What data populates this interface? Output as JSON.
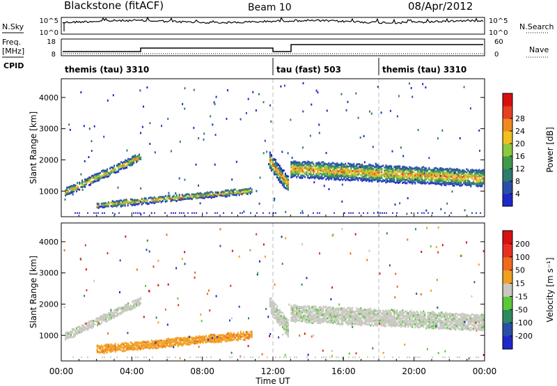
{
  "header": {
    "station": "Blackstone (fitACF)",
    "beam": "Beam 10",
    "date": "08/Apr/2012"
  },
  "left_labels": {
    "nsky": "N.Sky",
    "freq_line1": "Freq.",
    "freq_line2": "[MHz]",
    "cpid": "CPID"
  },
  "right_labels": {
    "nsearch": "N.Search",
    "nave": "Nave"
  },
  "status_axes": {
    "noise_left_ticks": [
      "10^5",
      "10^0"
    ],
    "noise_right_ticks": [
      "10^5",
      "10^0"
    ],
    "freq_left_ticks": [
      "18",
      "8"
    ],
    "freq_right_ticks": [
      "60",
      "0"
    ]
  },
  "cpid_segments": [
    {
      "label": "themis (tau) 3310",
      "start_h": 0,
      "end_h": 12
    },
    {
      "label": "tau (fast) 503",
      "start_h": 12,
      "end_h": 18
    },
    {
      "label": "themis (tau) 3310",
      "start_h": 18,
      "end_h": 24
    }
  ],
  "chart_data": [
    {
      "type": "heatmap",
      "name": "Power",
      "xlabel": "Time UT",
      "ylabel": "Slant Range [km]",
      "xlim": [
        0,
        24
      ],
      "ylim": [
        180,
        4600
      ],
      "yticks": [
        "1000",
        "2000",
        "3000",
        "4000"
      ],
      "xticks": [
        "00:00",
        "04:00",
        "08:00",
        "12:00",
        "16:00",
        "20:00",
        "00:00"
      ],
      "colorbar": {
        "label": "Power [dB]",
        "ticks": [
          "4",
          "8",
          "12",
          "16",
          "20",
          "24",
          "28"
        ],
        "colors": [
          "#1f28c8",
          "#2850a8",
          "#2e7a6e",
          "#3f9a4a",
          "#8cc840",
          "#f0c020",
          "#f08a20",
          "#e84020",
          "#d81010"
        ]
      },
      "echo_bands": [
        {
          "start_h": 0.2,
          "end_h": 4.5,
          "range_start_km": 1000,
          "range_end_km": 2150,
          "width_km": 230
        },
        {
          "start_h": 2.0,
          "end_h": 10.8,
          "range_start_km": 580,
          "range_end_km": 1050,
          "width_km": 160
        },
        {
          "start_h": 11.8,
          "end_h": 12.9,
          "range_start_km": 2000,
          "range_end_km": 1200,
          "width_km": 500
        },
        {
          "start_h": 13.0,
          "end_h": 23.9,
          "range_start_km": 1750,
          "range_end_km": 1450,
          "width_km": 520
        }
      ]
    },
    {
      "type": "heatmap",
      "name": "Velocity",
      "xlabel": "Time UT",
      "ylabel": "Slant Range [km]",
      "xlim": [
        0,
        24
      ],
      "ylim": [
        180,
        4600
      ],
      "yticks": [
        "1000",
        "2000",
        "3000",
        "4000"
      ],
      "xticks": [
        "00:00",
        "04:00",
        "08:00",
        "12:00",
        "16:00",
        "20:00",
        "00:00"
      ],
      "colorbar": {
        "label": "Velocity [m s⁻¹]",
        "ticks": [
          "200",
          "100",
          "50",
          "15",
          "-15",
          "-50",
          "-100",
          "-200"
        ],
        "colors": [
          "#1f28c8",
          "#2850a8",
          "#2e8a5e",
          "#5ac83a",
          "#c8c8c0",
          "#f0a020",
          "#f06a20",
          "#e83020",
          "#d81010"
        ]
      },
      "echo_bands": [
        {
          "start_h": 0.2,
          "end_h": 4.5,
          "range_start_km": 1000,
          "range_end_km": 2150,
          "width_km": 230
        },
        {
          "start_h": 2.0,
          "end_h": 10.8,
          "range_start_km": 580,
          "range_end_km": 1050,
          "width_km": 220
        },
        {
          "start_h": 11.8,
          "end_h": 12.9,
          "range_start_km": 2000,
          "range_end_km": 1200,
          "width_km": 500
        },
        {
          "start_h": 13.0,
          "end_h": 23.9,
          "range_start_km": 1750,
          "range_end_km": 1450,
          "width_km": 520
        }
      ]
    }
  ]
}
